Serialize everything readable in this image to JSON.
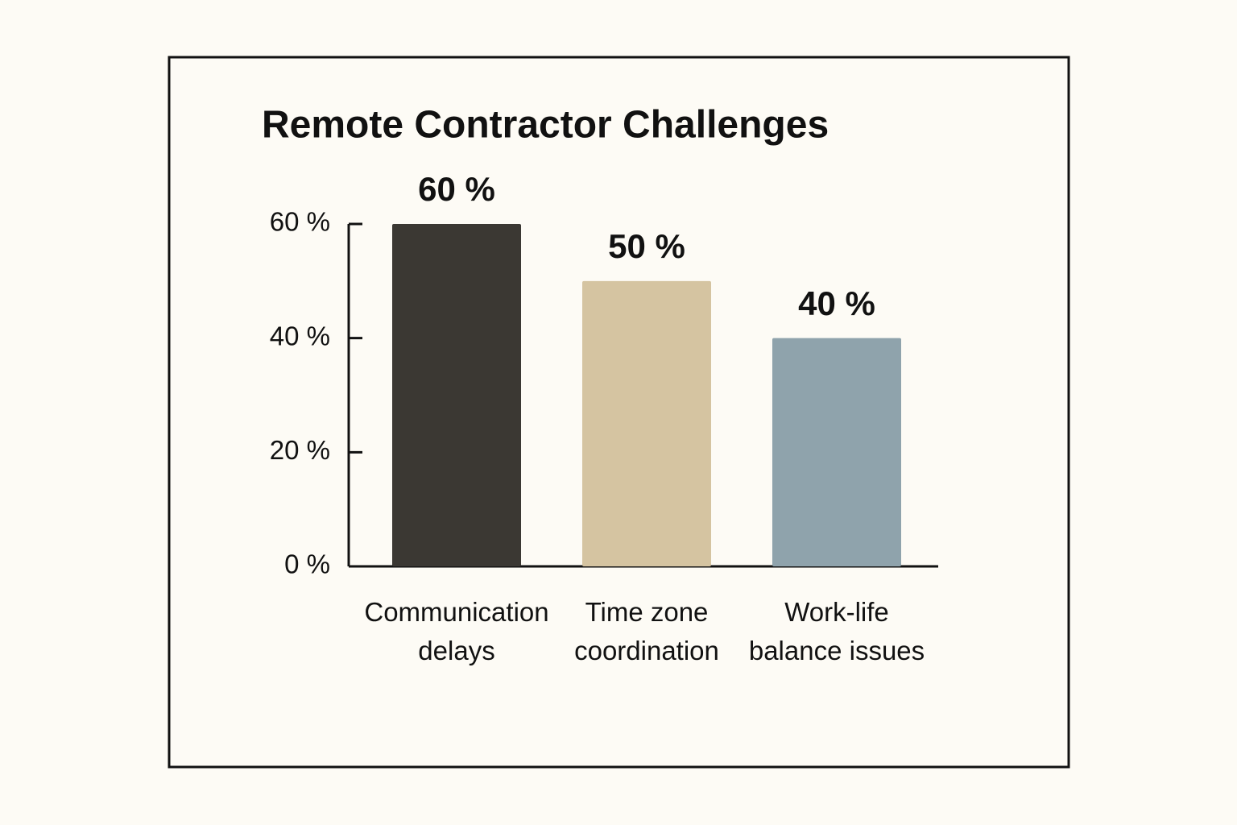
{
  "chart_data": {
    "type": "bar",
    "title": "Remote Contractor Challenges",
    "categories": [
      "Communication delays",
      "Time zone coordination",
      "Work-life balance issues"
    ],
    "values": [
      60,
      50,
      40
    ],
    "value_labels": [
      "60 %",
      "50 %",
      "40 %"
    ],
    "colors": [
      "#3b3833",
      "#d5c4a1",
      "#8fa3ac"
    ],
    "ylim": [
      0,
      60
    ],
    "yticks": [
      {
        "value": 0,
        "label": "0 %"
      },
      {
        "value": 20,
        "label": "20 %"
      },
      {
        "value": 40,
        "label": "40 %"
      },
      {
        "value": 60,
        "label": "60 %"
      }
    ],
    "grid": false
  }
}
